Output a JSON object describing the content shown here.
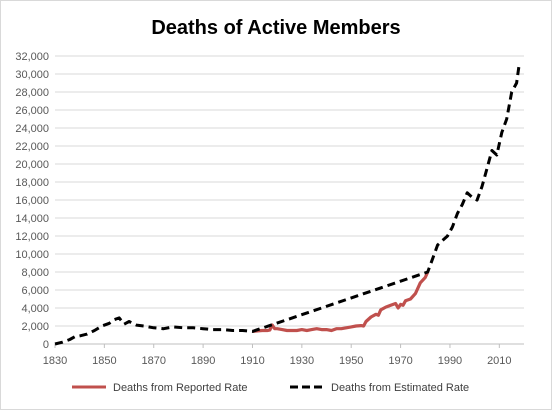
{
  "chart_data": {
    "type": "line",
    "title": "Deaths of Active Members",
    "xlabel": "",
    "ylabel": "",
    "xlim": [
      1830,
      2020
    ],
    "ylim": [
      0,
      32000
    ],
    "x_ticks": [
      1830,
      1850,
      1870,
      1890,
      1910,
      1930,
      1950,
      1970,
      1990,
      2010
    ],
    "x_tick_labels": [
      "1830",
      "1850",
      "1870",
      "1890",
      "1910",
      "1930",
      "1950",
      "1970",
      "1990",
      "2010"
    ],
    "y_ticks": [
      0,
      2000,
      4000,
      6000,
      8000,
      10000,
      12000,
      14000,
      16000,
      18000,
      20000,
      22000,
      24000,
      26000,
      28000,
      30000,
      32000
    ],
    "y_tick_labels": [
      "0",
      "2,000",
      "4,000",
      "6,000",
      "8,000",
      "10,000",
      "12,000",
      "14,000",
      "16,000",
      "18,000",
      "20,000",
      "22,000",
      "24,000",
      "26,000",
      "28,000",
      "30,000",
      "32,000"
    ],
    "grid": "horizontal",
    "legend_position": "bottom",
    "series": [
      {
        "name": "Deaths from Reported Rate",
        "color": "#c0504d",
        "style": "solid",
        "x": [
          1910,
          1912,
          1914,
          1916,
          1917,
          1918,
          1919,
          1920,
          1922,
          1924,
          1926,
          1928,
          1930,
          1932,
          1934,
          1936,
          1938,
          1940,
          1942,
          1944,
          1946,
          1948,
          1950,
          1952,
          1954,
          1955,
          1956,
          1958,
          1960,
          1961,
          1962,
          1964,
          1966,
          1968,
          1969,
          1970,
          1971,
          1972,
          1974,
          1976,
          1978,
          1980,
          1981
        ],
        "y": [
          1400,
          1450,
          1500,
          1500,
          1550,
          2100,
          1700,
          1700,
          1600,
          1500,
          1500,
          1500,
          1600,
          1500,
          1600,
          1700,
          1600,
          1600,
          1500,
          1700,
          1700,
          1800,
          1900,
          2000,
          2050,
          2000,
          2500,
          3000,
          3300,
          3200,
          3800,
          4100,
          4300,
          4500,
          4000,
          4400,
          4300,
          4800,
          5000,
          5600,
          6800,
          7400,
          8000
        ]
      },
      {
        "name": "Deaths from Estimated Rate",
        "color": "#000000",
        "style": "dashed",
        "x": [
          1830,
          1833,
          1836,
          1838,
          1840,
          1843,
          1846,
          1849,
          1852,
          1854,
          1856,
          1858,
          1860,
          1863,
          1866,
          1870,
          1874,
          1878,
          1882,
          1886,
          1890,
          1894,
          1898,
          1902,
          1906,
          1910,
          1981,
          1983,
          1985,
          1987,
          1989,
          1991,
          1993,
          1995,
          1997,
          1999,
          2001,
          2003,
          2005,
          2007,
          2009,
          2011,
          2013,
          2015,
          2017,
          2018
        ],
        "y": [
          0,
          200,
          500,
          800,
          900,
          1100,
          1500,
          2000,
          2300,
          2700,
          2900,
          2200,
          2500,
          2100,
          2000,
          1800,
          1700,
          1900,
          1800,
          1800,
          1700,
          1600,
          1600,
          1500,
          1500,
          1400,
          8000,
          9500,
          11000,
          11500,
          12000,
          13000,
          14500,
          15500,
          16800,
          16300,
          16000,
          17500,
          19500,
          21500,
          21000,
          23500,
          25000,
          28000,
          29000,
          31000
        ]
      }
    ]
  }
}
